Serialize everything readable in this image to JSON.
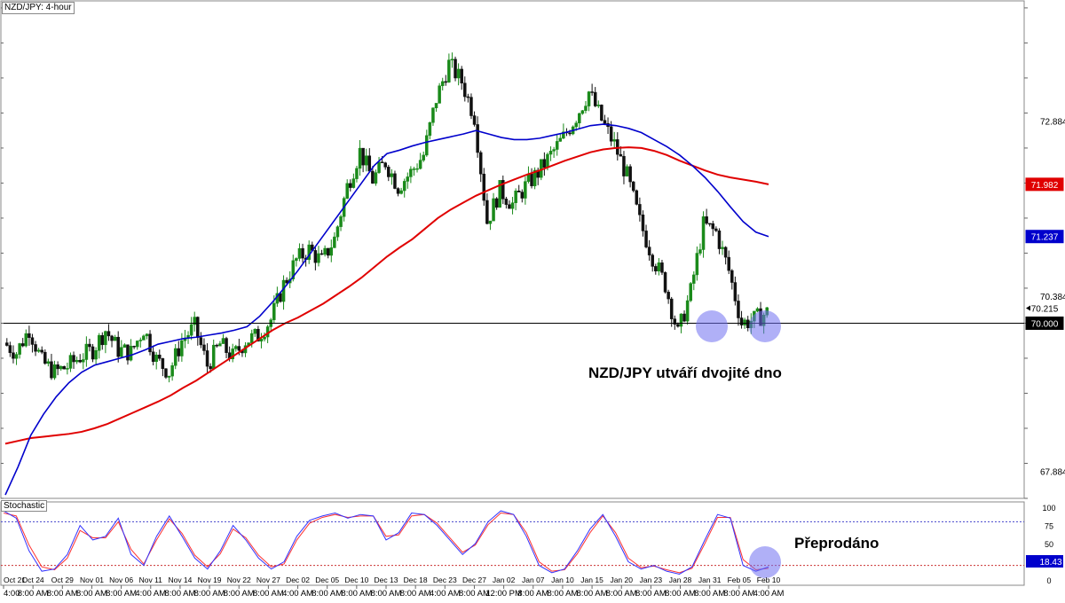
{
  "window": {
    "symbol_label": "NZD/JPY: 4-hour"
  },
  "indicator": {
    "label": "Stochastic",
    "k_color": "#3333ff",
    "d_color": "#ff3333",
    "levels": [
      "100",
      "75",
      "50",
      "25",
      "0"
    ],
    "value_label": "18.43"
  },
  "annotations": {
    "main": "NZD/JPY utváří dvojité dno",
    "sub": "Přeprodáno"
  },
  "colors": {
    "up": "#1a8a1a",
    "down": "#111111",
    "ma_fast": "#0000cc",
    "ma_slow": "#e00000",
    "circle": "#6f6ff0",
    "support_line": "#000000"
  },
  "chart_data": {
    "type": "line",
    "title": "NZD/JPY: 4-hour",
    "price_axis": {
      "ylim": [
        67.5,
        74.6
      ],
      "ticks": [
        67.884,
        70.384,
        72.884
      ]
    },
    "axis_badges": [
      {
        "value": 71.982,
        "label": "71.982",
        "color": "#e00000"
      },
      {
        "value": 71.237,
        "label": "71.237",
        "color": "#0000cc"
      },
      {
        "value": 70.215,
        "label": "70.215",
        "color": "#ffffff"
      },
      {
        "value": 70.0,
        "label": "70.000",
        "color": "#000000"
      }
    ],
    "x_dates": [
      "Oct 21",
      "Oct 24",
      "Oct 29",
      "Nov 01",
      "Nov 06",
      "Nov 11",
      "Nov 14",
      "Nov 19",
      "Nov 22",
      "Nov 27",
      "Dec 02",
      "Dec 05",
      "Dec 10",
      "Dec 13",
      "Dec 18",
      "Dec 23",
      "Dec 27",
      "Jan 02",
      "Jan 07",
      "Jan 10",
      "Jan 15",
      "Jan 20",
      "Jan 23",
      "Jan 28",
      "Jan 31",
      "Feb 05",
      "Feb 10"
    ],
    "x_times": [
      "4:00",
      "8:00 AM",
      "8:00 AM",
      "8:00 AM",
      "8:00 AM",
      "4:00 AM",
      "8:00 AM",
      "8:00 AM",
      "8:00 AM",
      "8:00 AM",
      "4:00 AM",
      "8:00 AM",
      "8:00 AM",
      "8:00 AM",
      "8:00 AM",
      "4:00 AM",
      "8:00 AM",
      "12:00 PM",
      "8:00 AM",
      "8:00 AM",
      "8:00 AM",
      "8:00 AM",
      "8:00 AM",
      "8:00 AM",
      "8:00 AM",
      "8:00 AM",
      "4:00 AM"
    ],
    "price": [
      69.72,
      69.58,
      69.92,
      69.45,
      69.3,
      69.38,
      69.52,
      69.62,
      69.9,
      69.62,
      69.58,
      69.92,
      69.48,
      69.3,
      69.75,
      69.95,
      69.4,
      69.7,
      69.52,
      69.75,
      69.82,
      70.05,
      70.55,
      70.9,
      71.05,
      70.88,
      71.2,
      71.95,
      72.45,
      72.05,
      72.3,
      71.95,
      72.15,
      72.4,
      73.2,
      73.7,
      73.45,
      72.95,
      71.45,
      71.9,
      71.7,
      71.95,
      72.15,
      72.4,
      72.65,
      72.95,
      73.3,
      72.9,
      72.55,
      72.1,
      71.45,
      70.95,
      70.55,
      69.85,
      70.45,
      71.4,
      71.3,
      70.75,
      70.0,
      70.05,
      70.15
    ],
    "ma_fast": [
      67.55,
      67.95,
      68.4,
      68.7,
      68.95,
      69.15,
      69.3,
      69.4,
      69.45,
      69.5,
      69.55,
      69.62,
      69.7,
      69.74,
      69.78,
      69.8,
      69.83,
      69.86,
      69.9,
      69.95,
      70.1,
      70.3,
      70.52,
      70.75,
      71.0,
      71.25,
      71.5,
      71.75,
      72.0,
      72.25,
      72.42,
      72.47,
      72.53,
      72.58,
      72.62,
      72.66,
      72.7,
      72.75,
      72.7,
      72.65,
      72.62,
      72.62,
      72.64,
      72.68,
      72.72,
      72.77,
      72.82,
      72.84,
      72.82,
      72.78,
      72.72,
      72.62,
      72.52,
      72.4,
      72.25,
      72.08,
      71.88,
      71.66,
      71.45,
      71.3,
      71.237
    ],
    "ma_slow": [
      68.28,
      68.32,
      68.36,
      68.38,
      68.4,
      68.42,
      68.45,
      68.5,
      68.56,
      68.64,
      68.72,
      68.8,
      68.88,
      68.97,
      69.08,
      69.18,
      69.3,
      69.42,
      69.54,
      69.66,
      69.78,
      69.9,
      70.0,
      70.08,
      70.18,
      70.28,
      70.4,
      70.52,
      70.65,
      70.8,
      70.95,
      71.08,
      71.2,
      71.35,
      71.5,
      71.62,
      71.72,
      71.82,
      71.9,
      71.98,
      72.05,
      72.12,
      72.18,
      72.25,
      72.32,
      72.38,
      72.44,
      72.48,
      72.5,
      72.51,
      72.5,
      72.46,
      72.4,
      72.32,
      72.25,
      72.18,
      72.12,
      72.08,
      72.05,
      72.02,
      71.982
    ],
    "support": 70.0,
    "stochastic": {
      "ylim": [
        0,
        100
      ],
      "levels": [
        80,
        20
      ],
      "k": [
        95,
        85,
        40,
        12,
        15,
        35,
        75,
        55,
        60,
        85,
        35,
        20,
        60,
        88,
        60,
        30,
        15,
        40,
        75,
        55,
        30,
        15,
        25,
        60,
        82,
        88,
        92,
        85,
        90,
        88,
        55,
        65,
        92,
        90,
        75,
        55,
        35,
        50,
        80,
        95,
        90,
        60,
        20,
        10,
        15,
        40,
        70,
        90,
        60,
        25,
        15,
        20,
        12,
        8,
        18,
        55,
        90,
        85,
        20,
        12,
        18
      ],
      "d": [
        92,
        88,
        48,
        18,
        14,
        30,
        68,
        58,
        58,
        80,
        42,
        22,
        55,
        84,
        64,
        34,
        18,
        36,
        70,
        58,
        34,
        18,
        22,
        55,
        78,
        86,
        90,
        86,
        88,
        88,
        60,
        62,
        88,
        90,
        78,
        58,
        38,
        48,
        76,
        92,
        90,
        65,
        25,
        12,
        14,
        36,
        65,
        88,
        65,
        30,
        17,
        19,
        14,
        10,
        16,
        50,
        86,
        86,
        28,
        14,
        16
      ]
    }
  }
}
